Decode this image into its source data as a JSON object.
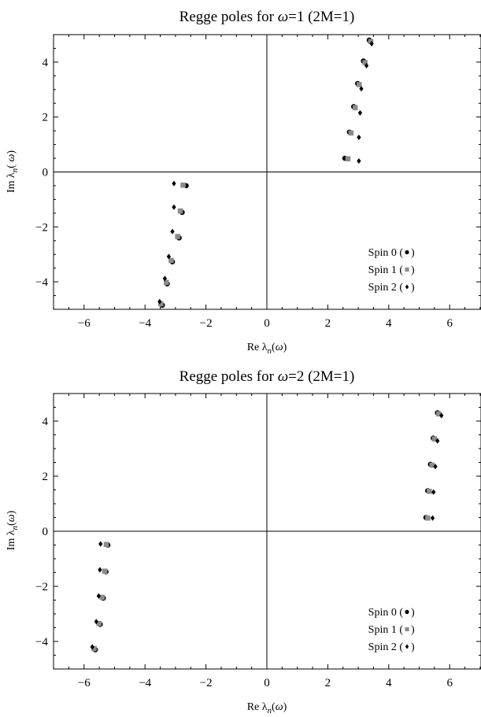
{
  "chart_data": [
    {
      "type": "scatter",
      "title": "Regge poles for ω=1 (2M=1)",
      "xlabel": "Re λn(ω)",
      "ylabel": "Im λn( ω)",
      "xlim": [
        -7,
        7
      ],
      "ylim": [
        -5,
        5
      ],
      "xticks": [
        -6,
        -4,
        -2,
        0,
        2,
        4,
        6
      ],
      "yticks": [
        -4,
        -2,
        0,
        2,
        4
      ],
      "tick_labels_x": [
        "−6",
        "−4",
        "−2",
        "0",
        "2",
        "4",
        "6"
      ],
      "tick_labels_y": [
        "−4",
        "−2",
        "0",
        "2",
        "4"
      ],
      "grid": false,
      "legend_position": "bottom-right",
      "series": [
        {
          "name": "Spin 0",
          "legend_text": "Spin 0 (",
          "marker": "circle",
          "color": "#000000",
          "points": [
            [
              2.56,
              0.5
            ],
            [
              2.71,
              1.45
            ],
            [
              2.85,
              2.38
            ],
            [
              2.98,
              3.22
            ],
            [
              3.17,
              4.04
            ],
            [
              3.36,
              4.8
            ],
            [
              -2.65,
              -0.5
            ],
            [
              -2.78,
              -1.47
            ],
            [
              -2.88,
              -2.4
            ],
            [
              -3.1,
              -3.27
            ],
            [
              -3.27,
              -4.07
            ],
            [
              -3.43,
              -4.85
            ]
          ]
        },
        {
          "name": "Spin 1",
          "legend_text": "Spin 1 (",
          "marker": "square",
          "color": "#8c8c8c",
          "points": [
            [
              2.66,
              0.48
            ],
            [
              2.76,
              1.42
            ],
            [
              2.9,
              2.34
            ],
            [
              3.03,
              3.18
            ],
            [
              3.22,
              3.98
            ],
            [
              3.41,
              4.75
            ],
            [
              -2.75,
              -0.48
            ],
            [
              -2.84,
              -1.42
            ],
            [
              -2.93,
              -2.35
            ],
            [
              -3.14,
              -3.22
            ],
            [
              -3.3,
              -4.02
            ],
            [
              -3.48,
              -4.8
            ]
          ]
        },
        {
          "name": "Spin 2",
          "legend_text": "Spin 2 (",
          "marker": "diamond",
          "color": "#000000",
          "points": [
            [
              3.02,
              0.4
            ],
            [
              3.02,
              1.26
            ],
            [
              3.06,
              2.15
            ],
            [
              3.1,
              3.03
            ],
            [
              3.27,
              3.87
            ],
            [
              3.44,
              4.67
            ],
            [
              -3.05,
              -0.42
            ],
            [
              -3.05,
              -1.28
            ],
            [
              -3.1,
              -2.17
            ],
            [
              -3.22,
              -3.08
            ],
            [
              -3.35,
              -3.88
            ],
            [
              -3.52,
              -4.72
            ]
          ]
        }
      ]
    },
    {
      "type": "scatter",
      "title": "Regge poles for ω=2 (2M=1)",
      "xlabel": "Re λn(ω)",
      "ylabel": "Im λn(ω)",
      "xlim": [
        -7,
        7
      ],
      "ylim": [
        -5,
        5
      ],
      "xticks": [
        -6,
        -4,
        -2,
        0,
        2,
        4,
        6
      ],
      "yticks": [
        -4,
        -2,
        0,
        2,
        4
      ],
      "tick_labels_x": [
        "−6",
        "−4",
        "−2",
        "0",
        "2",
        "4",
        "6"
      ],
      "tick_labels_y": [
        "−4",
        "−2",
        "0",
        "2",
        "4"
      ],
      "grid": false,
      "legend_position": "bottom-right",
      "series": [
        {
          "name": "Spin 0",
          "legend_text": "Spin 0 (",
          "marker": "circle",
          "color": "#000000",
          "points": [
            [
              5.22,
              0.5
            ],
            [
              5.28,
              1.47
            ],
            [
              5.37,
              2.43
            ],
            [
              5.46,
              3.38
            ],
            [
              5.6,
              4.3
            ],
            [
              -5.22,
              -0.5
            ],
            [
              -5.28,
              -1.47
            ],
            [
              -5.37,
              -2.43
            ],
            [
              -5.47,
              -3.38
            ],
            [
              -5.63,
              -4.3
            ]
          ]
        },
        {
          "name": "Spin 1",
          "legend_text": "Spin 1 (",
          "marker": "square",
          "color": "#8c8c8c",
          "points": [
            [
              5.28,
              0.48
            ],
            [
              5.33,
              1.45
            ],
            [
              5.42,
              2.4
            ],
            [
              5.5,
              3.35
            ],
            [
              5.64,
              4.26
            ],
            [
              -5.27,
              -0.48
            ],
            [
              -5.32,
              -1.45
            ],
            [
              -5.41,
              -2.4
            ],
            [
              -5.51,
              -3.35
            ],
            [
              -5.67,
              -4.26
            ]
          ]
        },
        {
          "name": "Spin 2",
          "legend_text": "Spin 2 (",
          "marker": "diamond",
          "color": "#000000",
          "points": [
            [
              5.44,
              0.48
            ],
            [
              5.47,
              1.42
            ],
            [
              5.53,
              2.35
            ],
            [
              5.6,
              3.28
            ],
            [
              5.73,
              4.2
            ],
            [
              -5.46,
              -0.46
            ],
            [
              -5.48,
              -1.4
            ],
            [
              -5.52,
              -2.35
            ],
            [
              -5.6,
              -3.28
            ],
            [
              -5.73,
              -4.2
            ]
          ]
        }
      ]
    }
  ]
}
